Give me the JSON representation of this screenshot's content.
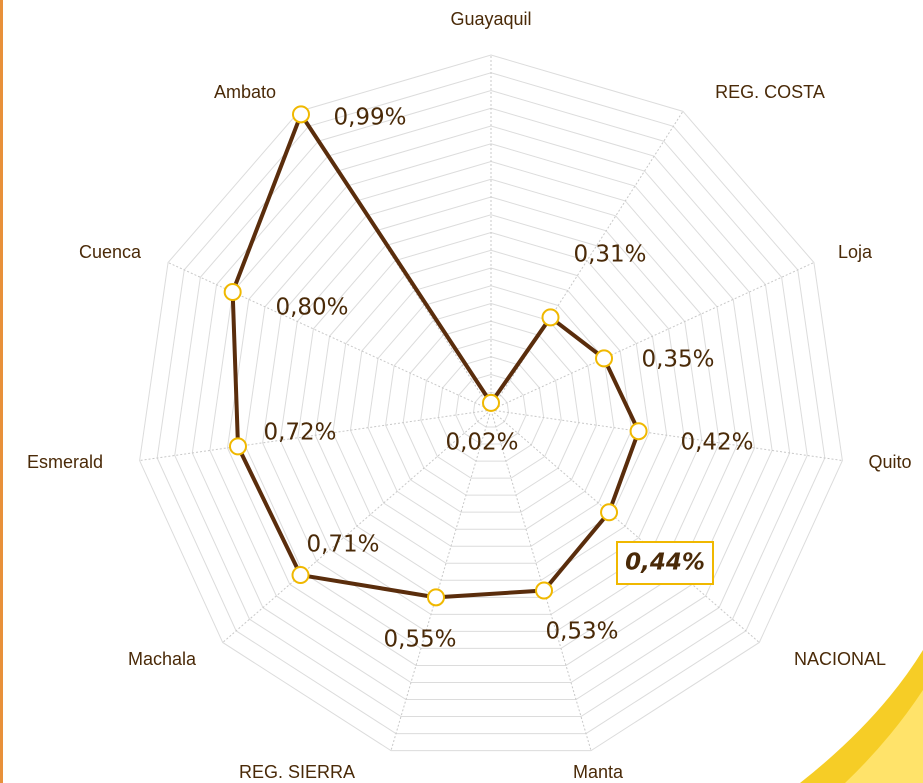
{
  "chart_data": {
    "type": "radar",
    "categories": [
      "Guayaquil",
      "REG. COSTA",
      "Loja",
      "Quito",
      "NACIONAL",
      "Manta",
      "REG. SIERRA",
      "Machala",
      "Esmerald",
      "Cuenca",
      "Ambato"
    ],
    "values": [
      0.02,
      0.31,
      0.35,
      0.42,
      0.44,
      0.53,
      0.55,
      0.71,
      0.72,
      0.8,
      0.99
    ],
    "value_labels": [
      "0,02%",
      "0,31%",
      "0,35%",
      "0,42%",
      "0,44%",
      "0,53%",
      "0,55%",
      "0,71%",
      "0,72%",
      "0,80%",
      "0,99%"
    ],
    "color": "#5a2d0c",
    "marker_color": "#f0b800",
    "ylim": [
      0,
      1
    ],
    "yticks": [
      0,
      0.05,
      0.1,
      0.15,
      0.2,
      0.25,
      0.3,
      0.35,
      0.4,
      0.45,
      0.5,
      0.55,
      0.6,
      0.65,
      0.7,
      0.75,
      0.8,
      0.85,
      0.9,
      0.95,
      1
    ],
    "grid": true
  }
}
